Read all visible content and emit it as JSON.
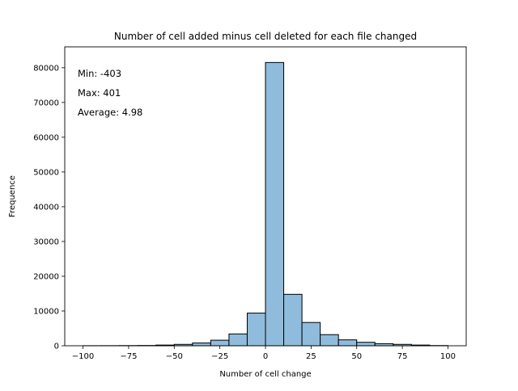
{
  "chart_data": {
    "type": "bar",
    "title": "Number of cell added minus cell deleted for each file changed",
    "xlabel": "Number of cell change",
    "ylabel": "Frequence",
    "xlim": [
      -110,
      110
    ],
    "ylim": [
      0,
      86000
    ],
    "x_ticks": [
      -100,
      -75,
      -50,
      -25,
      0,
      25,
      50,
      75,
      100
    ],
    "y_ticks": [
      0,
      10000,
      20000,
      30000,
      40000,
      50000,
      60000,
      70000,
      80000
    ],
    "bins": [
      {
        "x0": -100,
        "x1": -90,
        "count": 20
      },
      {
        "x0": -90,
        "x1": -80,
        "count": 30
      },
      {
        "x0": -80,
        "x1": -70,
        "count": 50
      },
      {
        "x0": -70,
        "x1": -60,
        "count": 80
      },
      {
        "x0": -60,
        "x1": -50,
        "count": 200
      },
      {
        "x0": -50,
        "x1": -40,
        "count": 400
      },
      {
        "x0": -40,
        "x1": -30,
        "count": 800
      },
      {
        "x0": -30,
        "x1": -20,
        "count": 1600
      },
      {
        "x0": -20,
        "x1": -10,
        "count": 3400
      },
      {
        "x0": -10,
        "x1": 0,
        "count": 9400
      },
      {
        "x0": 0,
        "x1": 10,
        "count": 81500
      },
      {
        "x0": 10,
        "x1": 20,
        "count": 14800
      },
      {
        "x0": 20,
        "x1": 30,
        "count": 6700
      },
      {
        "x0": 30,
        "x1": 40,
        "count": 3200
      },
      {
        "x0": 40,
        "x1": 50,
        "count": 1700
      },
      {
        "x0": 50,
        "x1": 60,
        "count": 1000
      },
      {
        "x0": 60,
        "x1": 70,
        "count": 600
      },
      {
        "x0": 70,
        "x1": 80,
        "count": 400
      },
      {
        "x0": 80,
        "x1": 90,
        "count": 200
      },
      {
        "x0": 90,
        "x1": 100,
        "count": 60
      }
    ],
    "annotations": [
      "Min: -403",
      "Max: 401",
      "Average: 4.98"
    ],
    "grid": false,
    "bar_color": "#8fbcdc",
    "edge_color": "#000000"
  }
}
